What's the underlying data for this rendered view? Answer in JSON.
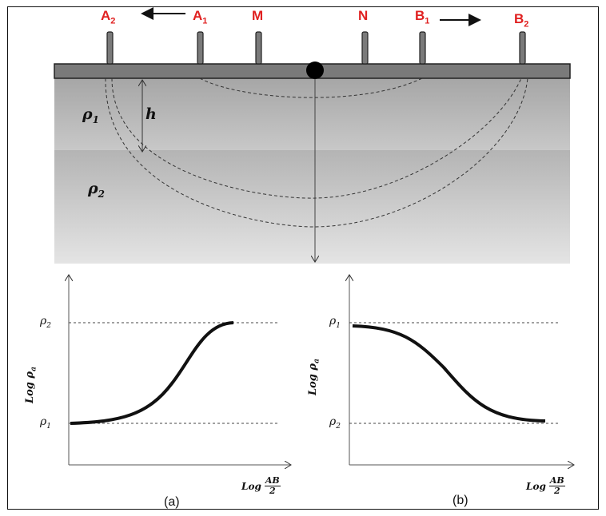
{
  "electrodes": {
    "A2": {
      "letter": "A",
      "sub": "2"
    },
    "A1": {
      "letter": "A",
      "sub": "1"
    },
    "M": {
      "letter": "M"
    },
    "N": {
      "letter": "N"
    },
    "B1": {
      "letter": "B",
      "sub": "1"
    },
    "B2": {
      "letter": "B",
      "sub": "2"
    }
  },
  "layers": {
    "rho1": {
      "symbol": "ρ",
      "sub": "1"
    },
    "rho2": {
      "symbol": "ρ",
      "sub": "2"
    },
    "thickness": "h"
  },
  "colors": {
    "electrode_label": "#e02020",
    "ground_bar": "#7a7a7a",
    "layer1_top": "#a9a9a9",
    "layer2": "#cfcfcf"
  },
  "plots": {
    "a": {
      "caption": "(a)",
      "y_axis": {
        "prefix": "Log ",
        "symbol": "ρ",
        "sub": "a"
      },
      "x_axis": {
        "prefix": "Log",
        "num": "AB",
        "den": "2"
      },
      "upper_level": {
        "symbol": "ρ",
        "sub": "2"
      },
      "lower_level": {
        "symbol": "ρ",
        "sub": "1"
      }
    },
    "b": {
      "caption": "(b)",
      "y_axis": {
        "prefix": "Log ",
        "symbol": "ρ",
        "sub": "a"
      },
      "x_axis": {
        "prefix": "Log",
        "num": "AB",
        "den": "2"
      },
      "upper_level": {
        "symbol": "ρ",
        "sub": "1"
      },
      "lower_level": {
        "symbol": "ρ",
        "sub": "2"
      }
    }
  }
}
